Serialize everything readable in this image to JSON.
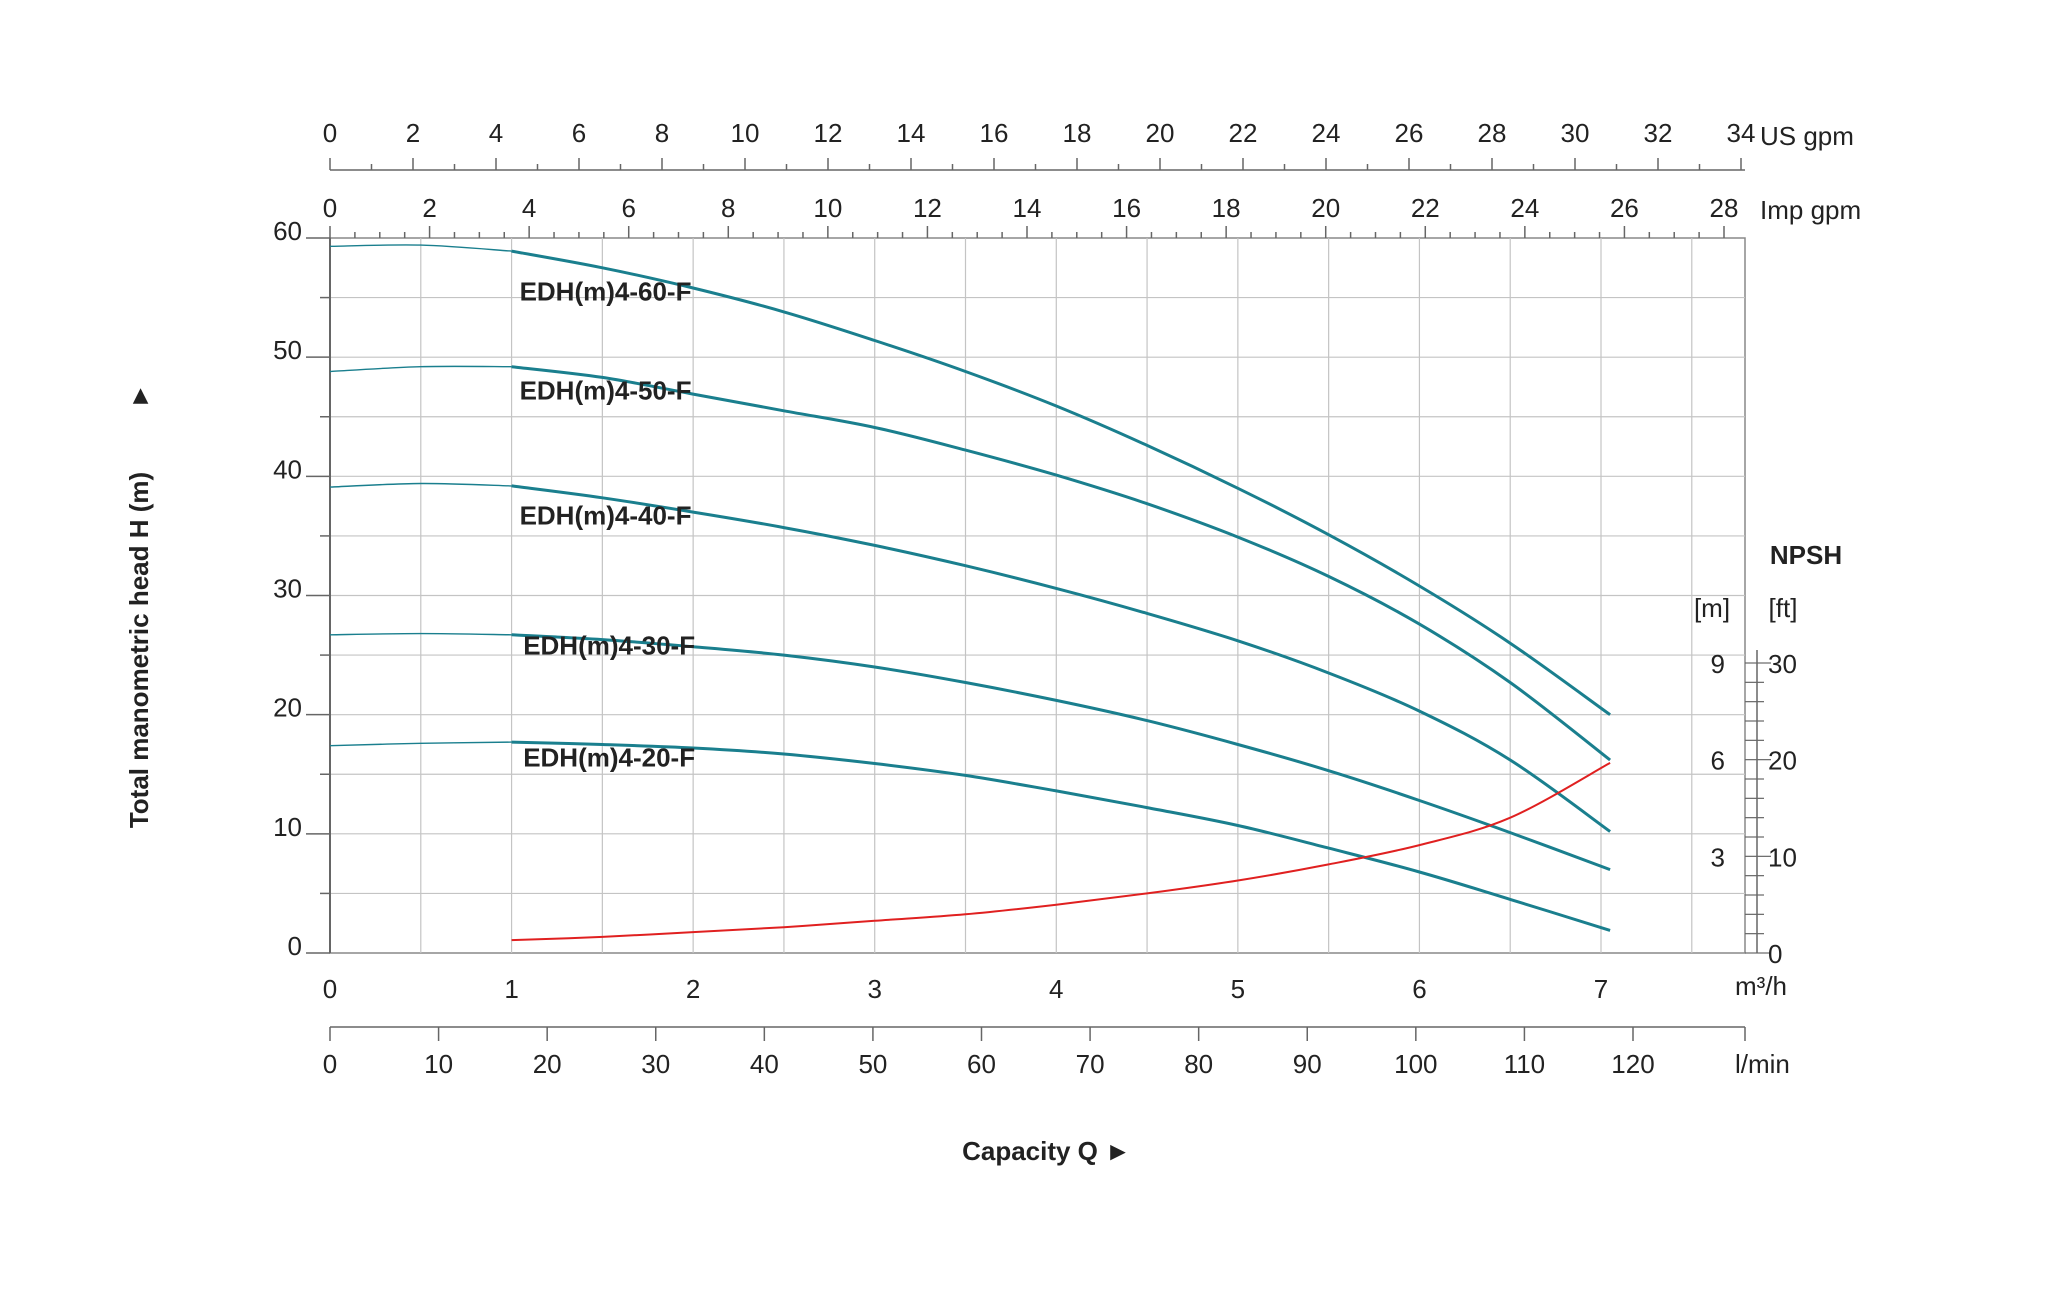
{
  "chart_data": {
    "type": "line",
    "title": "",
    "xlabel": "Capacity Q",
    "ylabel": "Total manometric head H (m)",
    "xunit": "m³/h",
    "xlim": [
      0,
      7.8
    ],
    "ylim": [
      0,
      60
    ],
    "grid": true,
    "x_ticks": [
      "0",
      "1",
      "2",
      "3",
      "4",
      "5",
      "6",
      "7"
    ],
    "y_ticks": [
      "0",
      "10",
      "20",
      "30",
      "40",
      "50",
      "60"
    ],
    "secondary_x_axes": [
      {
        "unit": "US gpm",
        "position": "top",
        "ticks": [
          "0",
          "2",
          "4",
          "6",
          "8",
          "10",
          "12",
          "14",
          "16",
          "18",
          "20",
          "22",
          "24",
          "26",
          "28",
          "30",
          "32",
          "34"
        ]
      },
      {
        "unit": "Imp gpm",
        "position": "top",
        "ticks": [
          "0",
          "2",
          "4",
          "6",
          "8",
          "10",
          "12",
          "14",
          "16",
          "18",
          "20",
          "22",
          "24",
          "26",
          "28"
        ]
      },
      {
        "unit": "l/min",
        "position": "bottom",
        "ticks": [
          "0",
          "10",
          "20",
          "30",
          "40",
          "50",
          "60",
          "70",
          "80",
          "90",
          "100",
          "110",
          "120"
        ]
      }
    ],
    "series": [
      {
        "name": "EDH(m)4-60-F",
        "color": "#1a7f8e",
        "x": [
          0,
          0.5,
          1,
          1.5,
          2,
          2.5,
          3,
          3.5,
          4,
          4.5,
          5,
          5.5,
          6,
          6.5,
          7.05
        ],
        "y": [
          59.3,
          59.4,
          58.9,
          57.5,
          55.8,
          53.8,
          51.4,
          48.8,
          45.9,
          42.6,
          39.0,
          35.1,
          30.8,
          26.0,
          20.0
        ]
      },
      {
        "name": "EDH(m)4-50-F",
        "color": "#1a7f8e",
        "x": [
          0,
          0.5,
          1,
          1.5,
          2,
          2.5,
          3,
          3.5,
          4,
          4.5,
          5,
          5.5,
          6,
          6.5,
          7.05
        ],
        "y": [
          48.8,
          49.2,
          49.2,
          48.3,
          46.9,
          45.5,
          44.1,
          42.2,
          40.1,
          37.7,
          34.9,
          31.6,
          27.6,
          22.7,
          16.2
        ]
      },
      {
        "name": "EDH(m)4-40-F",
        "color": "#1a7f8e",
        "x": [
          0,
          0.5,
          1,
          1.5,
          2,
          2.5,
          3,
          3.5,
          4,
          4.5,
          5,
          5.5,
          6,
          6.5,
          7.05
        ],
        "y": [
          39.1,
          39.4,
          39.2,
          38.2,
          37.0,
          35.7,
          34.2,
          32.5,
          30.6,
          28.5,
          26.2,
          23.5,
          20.3,
          16.2,
          10.2
        ]
      },
      {
        "name": "EDH(m)4-30-F",
        "color": "#1a7f8e",
        "x": [
          0,
          0.5,
          1,
          1.5,
          2,
          2.5,
          3,
          3.5,
          4,
          4.5,
          5,
          5.5,
          6,
          6.5,
          7.05
        ],
        "y": [
          26.7,
          26.8,
          26.7,
          26.3,
          25.7,
          25.0,
          24.0,
          22.7,
          21.2,
          19.5,
          17.5,
          15.3,
          12.8,
          10.1,
          7.0
        ]
      },
      {
        "name": "EDH(m)4-20-F",
        "color": "#1a7f8e",
        "x": [
          0,
          0.5,
          1,
          1.5,
          2,
          2.5,
          3,
          3.5,
          4,
          4.5,
          5,
          5.5,
          6,
          6.5,
          7.05
        ],
        "y": [
          17.4,
          17.6,
          17.7,
          17.5,
          17.2,
          16.7,
          15.9,
          14.9,
          13.6,
          12.2,
          10.7,
          8.8,
          6.8,
          4.5,
          1.9
        ]
      }
    ],
    "npsh": {
      "title": "NPSH",
      "color": "#e02020",
      "unit_m": "[m]",
      "unit_ft": "[ft]",
      "m_ticks": [
        "3",
        "6",
        "9"
      ],
      "ft_ticks": [
        "0",
        "10",
        "20",
        "30"
      ],
      "m_range": [
        0,
        9
      ],
      "x": [
        1,
        1.5,
        2,
        2.5,
        3,
        3.5,
        4,
        4.5,
        5,
        5.5,
        6,
        6.5,
        7.05
      ],
      "y_m": [
        0.4,
        0.5,
        0.65,
        0.8,
        1.0,
        1.2,
        1.5,
        1.85,
        2.25,
        2.75,
        3.35,
        4.2,
        5.9
      ]
    }
  }
}
